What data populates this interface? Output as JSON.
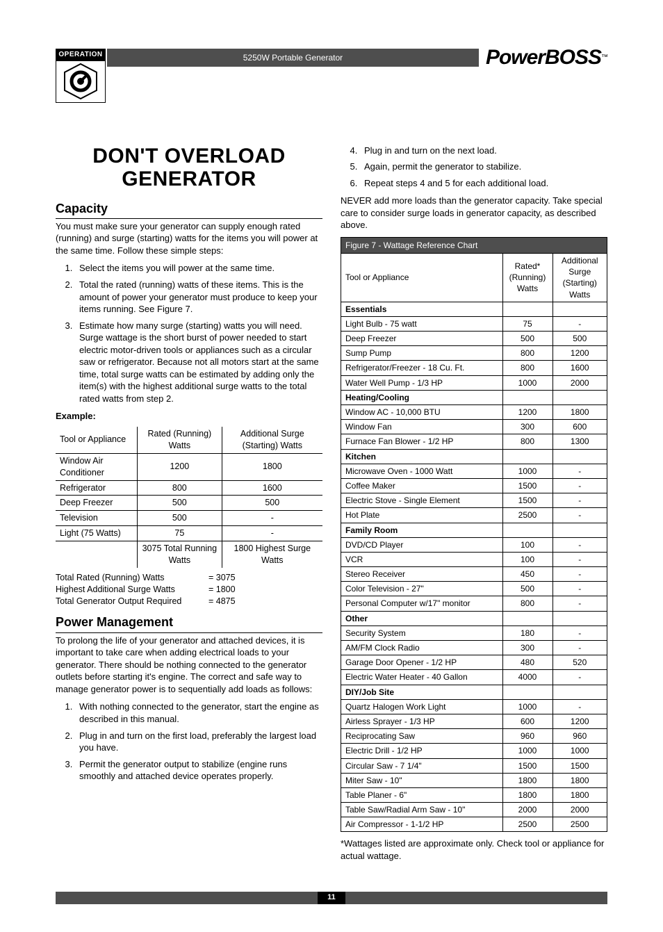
{
  "colors": {
    "bar": "#4e4e4e",
    "black": "#000000",
    "white": "#ffffff"
  },
  "header": {
    "badge_label": "OPERATION",
    "product": "5250W Portable Generator",
    "brand": "PowerBOSS"
  },
  "page_number": "11",
  "left": {
    "title_l1": "DON'T OVERLOAD",
    "title_l2": "GENERATOR",
    "capacity_heading": "Capacity",
    "capacity_para": "You must make sure your generator can supply enough rated (running) and surge (starting) watts for the items you will power at the same time. Follow these simple steps:",
    "steps": [
      "Select the items you will power at the same time.",
      "Total the rated (running) watts of these items. This is the amount of power your generator must produce to keep your items running. See Figure 7.",
      "Estimate how many surge (starting) watts you will need. Surge wattage is the short burst of power needed to start electric motor-driven tools or appliances such as a circular saw or refrigerator. Because not all motors start at the same time, total surge watts can be estimated by adding only the item(s) with the highest additional surge watts to the total rated watts from step 2."
    ],
    "example_label": "Example:",
    "example_headers": [
      "Tool or Appliance",
      "Rated (Running) Watts",
      "Additional Surge (Starting) Watts"
    ],
    "example_rows": [
      [
        "Window Air Conditioner",
        "1200",
        "1800"
      ],
      [
        "Refrigerator",
        "800",
        "1600"
      ],
      [
        "Deep Freezer",
        "500",
        "500"
      ],
      [
        "Television",
        "500",
        "-"
      ],
      [
        "Light (75 Watts)",
        "75",
        "-"
      ]
    ],
    "example_totals_row": [
      "",
      "3075 Total Running Watts",
      "1800 Highest Surge Watts"
    ],
    "totals": [
      {
        "label": "Total Rated (Running) Watts",
        "value": "= 3075"
      },
      {
        "label": "Highest Additional Surge Watts",
        "value": "= 1800"
      },
      {
        "label": "Total Generator Output Required",
        "value": "= 4875"
      }
    ],
    "power_heading": "Power Management",
    "power_para": "To prolong the life of your generator and attached devices, it is important to take care when adding electrical loads to your generator. There should be nothing connected to the generator outlets before starting it's engine. The correct and safe way to manage generator power is to sequentially add loads as follows:",
    "power_steps": [
      "With nothing connected to the generator, start the engine as described in this manual.",
      "Plug in and turn on the first load, preferably the largest load you have.",
      "Permit the generator output to stabilize (engine runs smoothly and attached device operates properly."
    ]
  },
  "right": {
    "cont_steps": [
      "Plug in and turn on the next load.",
      "Again, permit the generator to stabilize.",
      "Repeat steps 4 and 5 for each additional load."
    ],
    "never_para": "NEVER add more loads than the generator capacity. Take special care to consider surge loads in generator capacity, as described above.",
    "figure_caption": "Figure 7 - Wattage Reference Chart",
    "ref_headers": [
      "Tool or Appliance",
      "Rated* (Running) Watts",
      "Additional Surge (Starting) Watts"
    ],
    "sections": [
      {
        "title": "Essentials",
        "rows": [
          [
            "Light Bulb - 75 watt",
            "75",
            "-"
          ],
          [
            "Deep Freezer",
            "500",
            "500"
          ],
          [
            "Sump Pump",
            "800",
            "1200"
          ],
          [
            "Refrigerator/Freezer - 18 Cu. Ft.",
            "800",
            "1600"
          ],
          [
            "Water Well Pump - 1/3 HP",
            "1000",
            "2000"
          ]
        ]
      },
      {
        "title": "Heating/Cooling",
        "rows": [
          [
            "Window AC - 10,000 BTU",
            "1200",
            "1800"
          ],
          [
            "Window Fan",
            "300",
            "600"
          ],
          [
            "Furnace Fan Blower - 1/2 HP",
            "800",
            "1300"
          ]
        ]
      },
      {
        "title": "Kitchen",
        "rows": [
          [
            "Microwave Oven - 1000 Watt",
            "1000",
            "-"
          ],
          [
            "Coffee Maker",
            "1500",
            "-"
          ],
          [
            "Electric Stove - Single Element",
            "1500",
            "-"
          ],
          [
            "Hot Plate",
            "2500",
            "-"
          ]
        ]
      },
      {
        "title": "Family Room",
        "rows": [
          [
            "DVD/CD Player",
            "100",
            "-"
          ],
          [
            "VCR",
            "100",
            "-"
          ],
          [
            "Stereo Receiver",
            "450",
            "-"
          ],
          [
            "Color Television - 27\"",
            "500",
            "-"
          ],
          [
            "Personal Computer w/17\" monitor",
            "800",
            "-"
          ]
        ]
      },
      {
        "title": "Other",
        "rows": [
          [
            "Security System",
            "180",
            "-"
          ],
          [
            "AM/FM Clock Radio",
            "300",
            "-"
          ],
          [
            "Garage Door Opener - 1/2 HP",
            "480",
            "520"
          ],
          [
            "Electric Water Heater - 40 Gallon",
            "4000",
            "-"
          ]
        ]
      },
      {
        "title": "DIY/Job Site",
        "rows": [
          [
            "Quartz Halogen Work Light",
            "1000",
            "-"
          ],
          [
            "Airless Sprayer - 1/3 HP",
            "600",
            "1200"
          ],
          [
            "Reciprocating Saw",
            "960",
            "960"
          ],
          [
            "Electric Drill - 1/2 HP",
            "1000",
            "1000"
          ],
          [
            "Circular Saw - 7 1/4\"",
            "1500",
            "1500"
          ],
          [
            "Miter Saw - 10\"",
            "1800",
            "1800"
          ],
          [
            "Table Planer - 6\"",
            "1800",
            "1800"
          ],
          [
            "Table Saw/Radial Arm Saw - 10\"",
            "2000",
            "2000"
          ],
          [
            "Air Compressor - 1-1/2 HP",
            "2500",
            "2500"
          ]
        ]
      }
    ],
    "footnote": "*Wattages listed are approximate only. Check tool or appliance for actual wattage."
  }
}
